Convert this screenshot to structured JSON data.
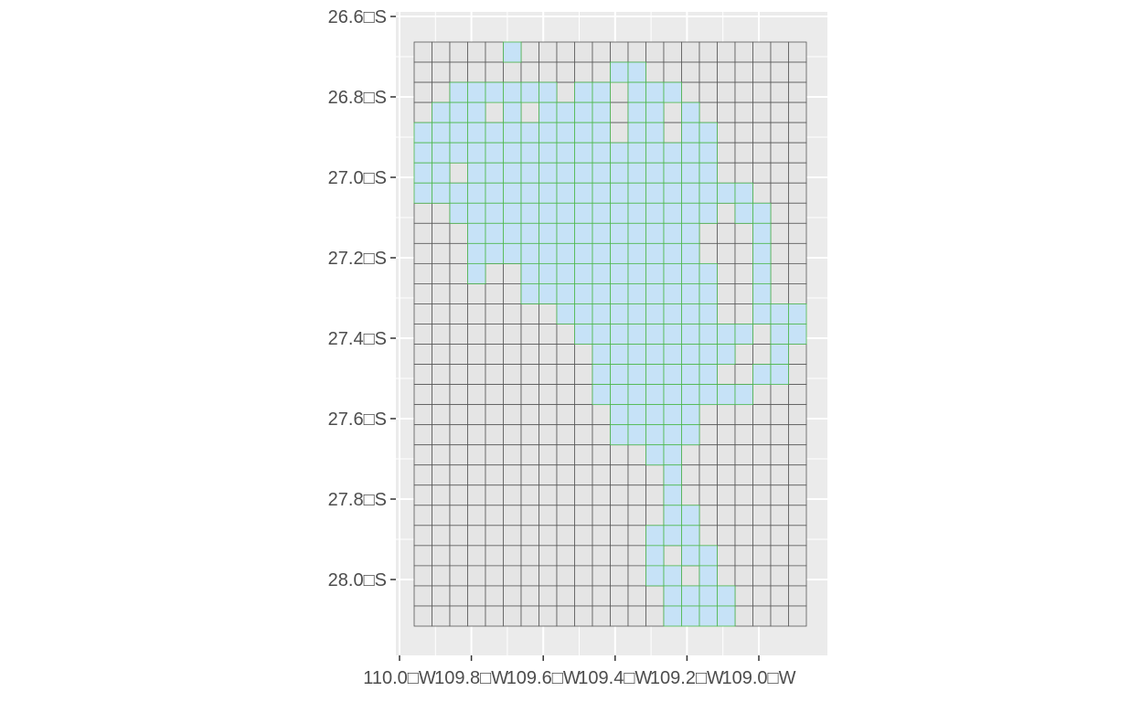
{
  "y_axis": {
    "tick_labels": [
      "26.6□S",
      "26.8□S",
      "27.0□S",
      "27.2□S",
      "27.4□S",
      "27.6□S",
      "27.8□S",
      "28.0□S"
    ],
    "tick_values": [
      -26.6,
      -26.8,
      -27.0,
      -27.2,
      -27.4,
      -27.6,
      -27.8,
      -28.0
    ]
  },
  "x_axis": {
    "tick_labels": [
      "110.0□W",
      "109.8□W",
      "109.6□W",
      "109.4□W",
      "109.2□W",
      "109.0□W"
    ],
    "tick_values": [
      -110.0,
      -109.8,
      -109.6,
      -109.4,
      -109.2,
      -109.0
    ]
  },
  "colors": {
    "panel_background": "#ebebeb",
    "grid_lines": "#ffffff",
    "empty_cell_fill": "#e5e5e5",
    "empty_cell_border": "#595959",
    "island_cell_fill": "#c6e2f7",
    "island_cell_border": "#4cb84c",
    "tick_text": "#4d4d4d",
    "tick_marks": "#333333"
  },
  "grid": {
    "columns": 22,
    "rows": 29,
    "island_mask": [
      "00000X0000000000000000",
      "00000000000XX000000000",
      "00XXXXXX0XX0XXX0000000",
      "0XXX0X0XXXX0XX0X000000",
      "XXXXXXXXXXX0XX0XX00000",
      "XXXXXXXXXXXXXXXXX00000",
      "XX0XXXXXXXXXXXXXX00000",
      "XXXXXXXXXXXXXXXXXXX000",
      "00XXXXXXXXXXXXXXX0XX00",
      "000XXXXXXXXXXXXX000X00",
      "000XXXXXXXXXXXXX000X00",
      "000X00XXXXXXXXXXX00X00",
      "000000XXXXXXXXXXX00X00",
      "00000000XXXXXXXXX00XXX",
      "000000000XXXXXXXXXX0XX",
      "0000000000XXXXXXXX00X0",
      "0000000000XXXXXXX00XX0",
      "0000000000XXXXXXXXX000",
      "00000000000XXXXX000000",
      "00000000000XXXXX000000",
      "0000000000000XX0000000",
      "00000000000000X0000000",
      "00000000000000X0000000",
      "00000000000000XX000000",
      "0000000000000XXX000000",
      "0000000000000X0XX00000",
      "0000000000000XX0X00000",
      "00000000000000XXXX0000",
      "00000000000000XXXX0000"
    ]
  }
}
